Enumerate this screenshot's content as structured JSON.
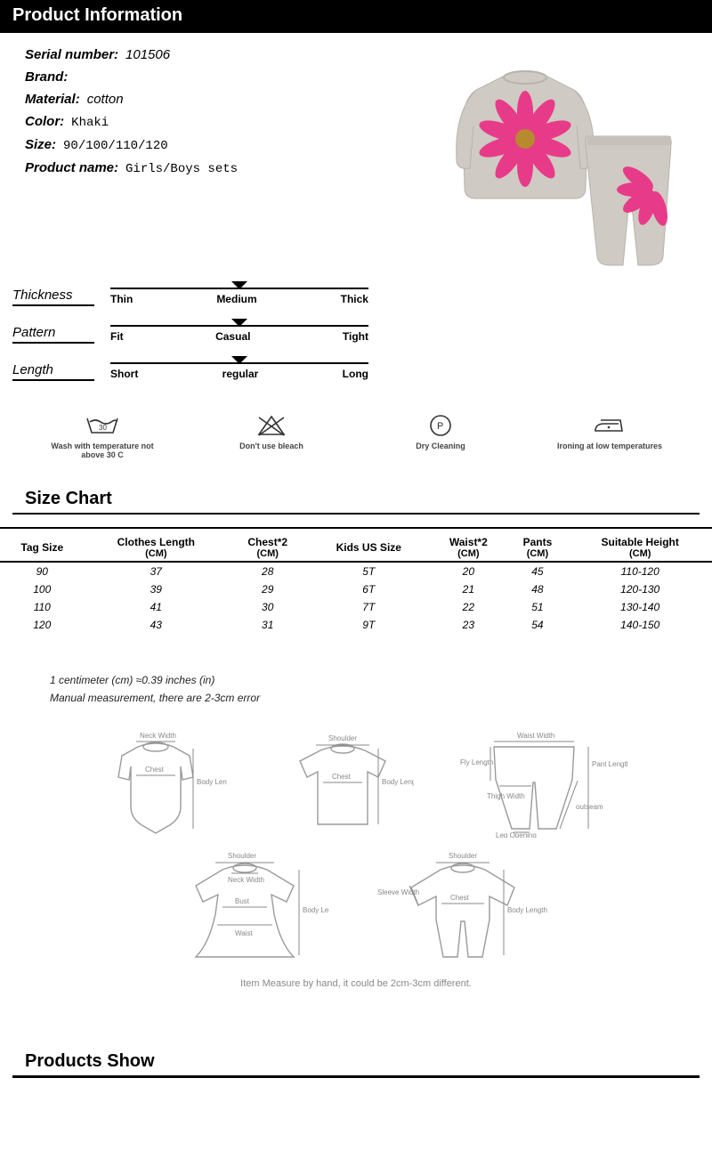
{
  "sections": {
    "product_info_title": "Product Information",
    "size_chart_title": "Size Chart",
    "products_show_title": "Products Show"
  },
  "product": {
    "fields": {
      "serial_label": "Serial number:",
      "serial_value": "101506",
      "brand_label": "Brand:",
      "brand_value": "",
      "material_label": "Material:",
      "material_value": "cotton",
      "color_label": "Color:",
      "color_value": "Khaki",
      "size_label": "Size:",
      "size_value": "90/100/110/120",
      "name_label": "Product name:",
      "name_value": "Girls/Boys sets"
    },
    "image": {
      "garment_color": "#cfcac3",
      "flower_color": "#e73b89",
      "flower_center": "#b88a2f"
    }
  },
  "sliders": {
    "thickness": {
      "label": "Thickness",
      "options": [
        "Thin",
        "Medium",
        "Thick"
      ],
      "selected_index": 1
    },
    "pattern": {
      "label": "Pattern",
      "options": [
        "Fit",
        "Casual",
        "Tight"
      ],
      "selected_index": 1
    },
    "length": {
      "label": "Length",
      "options": [
        "Short",
        "regular",
        "Long"
      ],
      "selected_index": 1
    }
  },
  "care": [
    {
      "icon": "wash-30",
      "text": "Wash with temperature not above 30 C"
    },
    {
      "icon": "no-bleach",
      "text": "Don't use bleach"
    },
    {
      "icon": "dryclean",
      "text": "Dry Cleaning"
    },
    {
      "icon": "iron-low",
      "text": "Ironing at low temperatures"
    }
  ],
  "size_chart": {
    "columns": [
      {
        "header": "Tag Size",
        "unit": ""
      },
      {
        "header": "Clothes Length",
        "unit": "(CM)"
      },
      {
        "header": "Chest*2",
        "unit": "(CM)"
      },
      {
        "header": "Kids US Size",
        "unit": ""
      },
      {
        "header": "Waist*2",
        "unit": "(CM)"
      },
      {
        "header": "Pants",
        "unit": "(CM)"
      },
      {
        "header": "Suitable Height",
        "unit": "(CM)"
      }
    ],
    "rows": [
      [
        "90",
        "37",
        "28",
        "5T",
        "20",
        "45",
        "110-120"
      ],
      [
        "100",
        "39",
        "29",
        "6T",
        "21",
        "48",
        "120-130"
      ],
      [
        "110",
        "41",
        "30",
        "7T",
        "22",
        "51",
        "130-140"
      ],
      [
        "120",
        "43",
        "31",
        "9T",
        "23",
        "54",
        "140-150"
      ]
    ],
    "notes": [
      "1 centimeter (cm) ≈0.39 inches (in)",
      "Manual measurement, there are 2-3cm error"
    ],
    "diagram_caption": "Item Measure by hand, it could be 2cm-3cm different.",
    "diagram_labels": {
      "neck_width": "Neck Width",
      "body_length": "Body Length",
      "chest": "Chest",
      "shoulder": "Shoulder",
      "waist_width": "Waist Width",
      "fly_length": "Fly Length",
      "thigh_width": "Thigh Width",
      "leg_opening": "Leg Opening",
      "pant_length": "Pant Length",
      "outseam": "outseam",
      "bust": "Bust",
      "waist": "Waist",
      "sleeve_width": "Sleeve Width"
    }
  },
  "colors": {
    "text": "#000000",
    "bg": "#ffffff",
    "header_bg": "#000000",
    "diagram_stroke": "#9a9a9a",
    "care_text": "#444444"
  }
}
